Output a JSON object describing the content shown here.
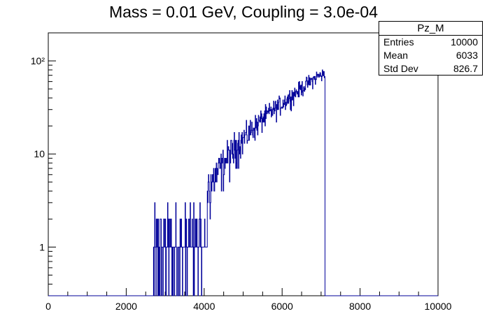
{
  "chart_data": {
    "type": "histogram",
    "title": "Mass = 0.01 GeV, Coupling = 3.0e-04",
    "xlabel": "",
    "ylabel": "",
    "xlim": [
      0,
      10000
    ],
    "ylim": [
      0.3,
      200
    ],
    "y_scale": "log",
    "x_ticks": [
      "0",
      "2000",
      "4000",
      "6000",
      "8000",
      "10000"
    ],
    "y_ticks": [
      {
        "value": 1,
        "label": "1"
      },
      {
        "value": 10,
        "label": "10"
      },
      {
        "value": 100,
        "label": "10²"
      }
    ],
    "line_color": "#000099",
    "bin_range": [
      2700,
      7100
    ],
    "bin_width": 10,
    "trend": {
      "x": [
        2700,
        3000,
        3300,
        3600,
        3900,
        4200,
        4500,
        4800,
        5100,
        5400,
        5700,
        6000,
        6300,
        6600,
        6900,
        7100
      ],
      "y": [
        0.9,
        1.1,
        1.3,
        1.7,
        2.8,
        5.0,
        8.0,
        12.0,
        16.0,
        22.0,
        28.0,
        35.0,
        44.0,
        55.0,
        68.0,
        72.0
      ]
    },
    "stats": {
      "name": "Pz_M",
      "entries_label": "Entries",
      "entries": "10000",
      "mean_label": "Mean",
      "mean": "6033",
      "stddev_label": "Std Dev",
      "stddev": "826.7"
    }
  }
}
